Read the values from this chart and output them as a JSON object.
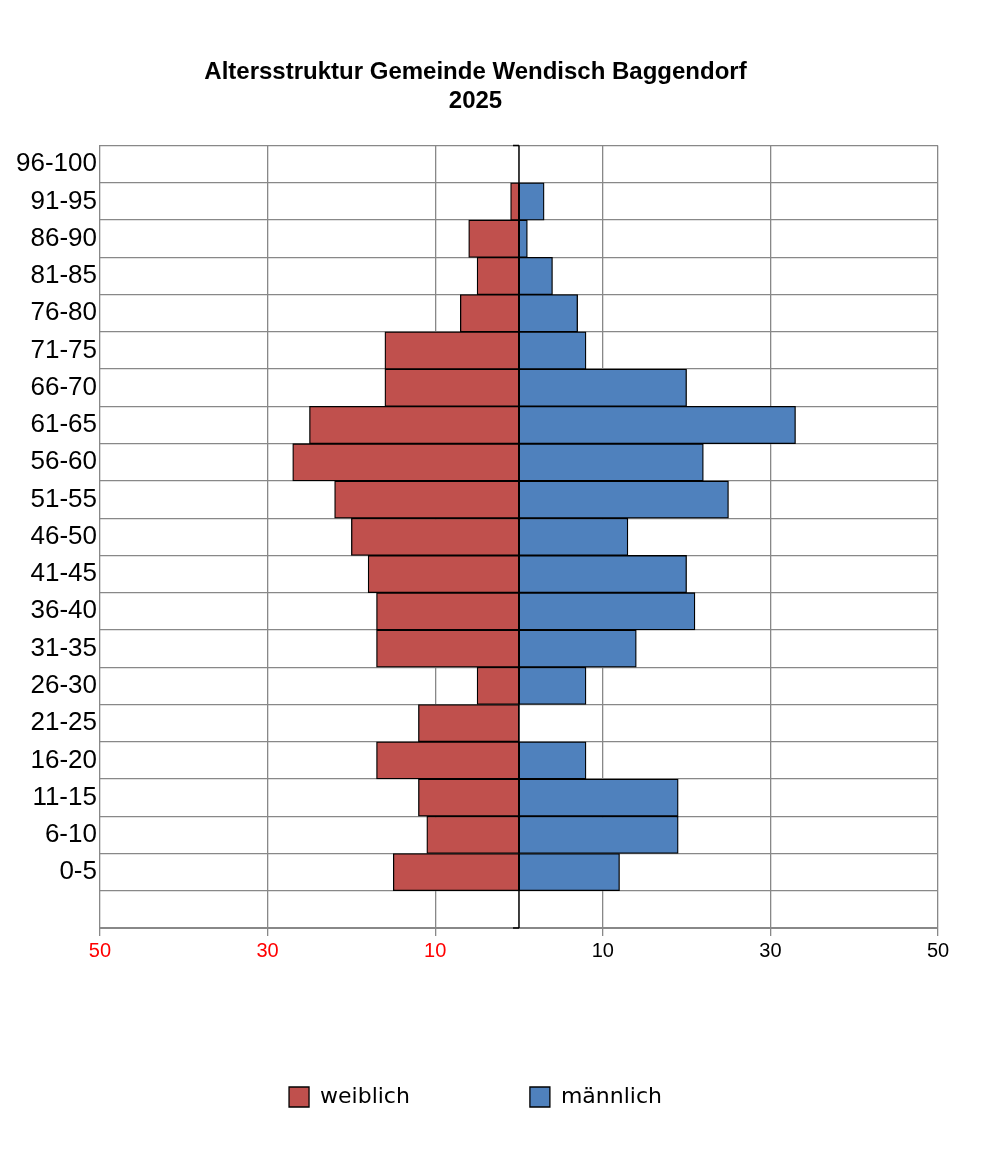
{
  "chart_data": {
    "type": "bar",
    "orientation": "horizontal",
    "stacked": true,
    "title": "Altersstruktur Gemeinde Wendisch Baggendorf\n2025",
    "categories": [
      "96-100",
      "91-95",
      "86-90",
      "81-85",
      "76-80",
      "71-75",
      "66-70",
      "61-65",
      "56-60",
      "51-55",
      "46-50",
      "41-45",
      "36-40",
      "31-35",
      "26-30",
      "21-25",
      "16-20",
      "11-15",
      "6-10",
      "0-5",
      null
    ],
    "series": [
      {
        "name": "weiblich",
        "color": "#c0504d",
        "values": [
          0,
          -1,
          -6,
          -5,
          -7,
          -16,
          -16,
          -25,
          -27,
          -22,
          -20,
          -18,
          -17,
          -17,
          -5,
          -12,
          -17,
          -12,
          -11,
          -15,
          null
        ]
      },
      {
        "name": "männlich",
        "color": "#4f81bd",
        "values": [
          0,
          3,
          1,
          4,
          7,
          8,
          20,
          33,
          22,
          25,
          13,
          20,
          21,
          14,
          8,
          0,
          8,
          19,
          19,
          12,
          null
        ]
      }
    ],
    "xlim": [
      -50,
      50
    ],
    "xticks": [
      {
        "value": -50,
        "label": "50"
      },
      {
        "value": -30,
        "label": "30"
      },
      {
        "value": -10,
        "label": "10"
      },
      {
        "value": 10,
        "label": "10"
      },
      {
        "value": 30,
        "label": "30"
      },
      {
        "value": 50,
        "label": "50"
      }
    ],
    "grid": true,
    "legend": "bottom"
  }
}
